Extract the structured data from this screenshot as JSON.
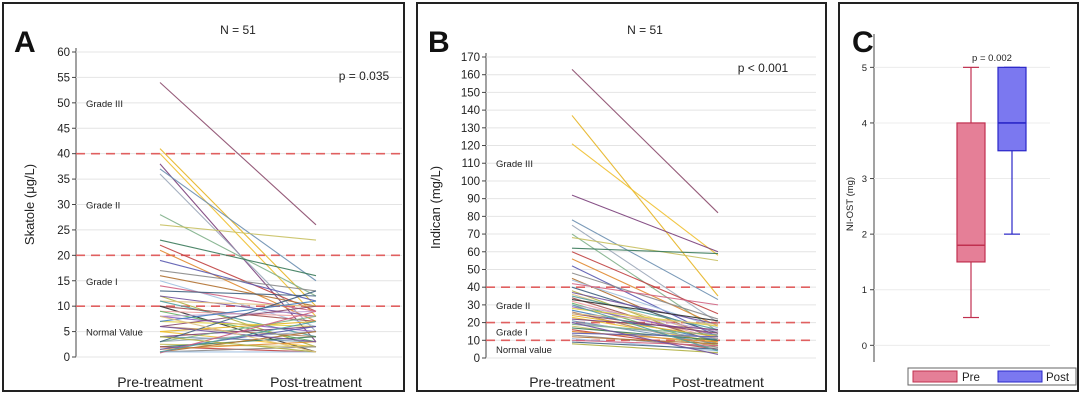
{
  "chart_data": [
    {
      "panel": "A",
      "type": "line",
      "title": "N = 51",
      "ylabel": "Skatole (μg/L)",
      "categories": [
        "Pre-treatment",
        "Post-treatment"
      ],
      "ylim": [
        0,
        60
      ],
      "yticks": [
        0,
        5,
        10,
        15,
        20,
        25,
        30,
        35,
        40,
        45,
        50,
        55,
        60
      ],
      "annotation": "p = 0.035",
      "thresholds": [
        10,
        20,
        40
      ],
      "threshold_color": "#e06060",
      "zones": [
        {
          "label": "Grade III",
          "y": 50
        },
        {
          "label": "Grade II",
          "y": 30
        },
        {
          "label": "Grade I",
          "y": 15
        },
        {
          "label": "Normal Value",
          "y": 5
        }
      ],
      "pairs": [
        [
          54,
          26
        ],
        [
          41,
          10
        ],
        [
          40,
          8
        ],
        [
          38,
          3
        ],
        [
          37,
          15
        ],
        [
          36,
          5
        ],
        [
          28,
          12
        ],
        [
          26,
          23
        ],
        [
          23,
          16
        ],
        [
          22,
          9
        ],
        [
          21,
          7
        ],
        [
          19,
          11
        ],
        [
          17,
          13
        ],
        [
          16,
          10
        ],
        [
          15,
          6
        ],
        [
          14,
          9
        ],
        [
          13,
          12
        ],
        [
          12,
          2
        ],
        [
          12,
          8
        ],
        [
          11,
          10
        ],
        [
          11,
          4
        ],
        [
          10,
          7
        ],
        [
          10,
          1
        ],
        [
          9,
          8
        ],
        [
          9,
          3
        ],
        [
          8,
          9
        ],
        [
          8,
          5
        ],
        [
          7,
          6
        ],
        [
          7,
          11
        ],
        [
          6,
          4
        ],
        [
          6,
          10
        ],
        [
          5,
          7
        ],
        [
          5,
          2
        ],
        [
          4,
          6
        ],
        [
          4,
          3
        ],
        [
          3,
          5
        ],
        [
          3,
          8
        ],
        [
          2.5,
          2
        ],
        [
          2,
          4
        ],
        [
          2,
          1
        ],
        [
          1.5,
          3
        ],
        [
          1.5,
          6
        ],
        [
          1,
          2
        ],
        [
          1,
          5
        ],
        [
          1,
          1
        ],
        [
          0.8,
          9
        ],
        [
          3,
          13
        ],
        [
          4,
          1
        ],
        [
          6,
          3
        ],
        [
          8,
          1
        ],
        [
          1,
          7
        ]
      ]
    },
    {
      "panel": "B",
      "type": "line",
      "title": "N = 51",
      "ylabel": "Indican (mg/L)",
      "categories": [
        "Pre-treatment",
        "Post-treatment"
      ],
      "ylim": [
        0,
        170
      ],
      "yticks": [
        0,
        10,
        20,
        30,
        40,
        50,
        60,
        70,
        80,
        90,
        100,
        110,
        120,
        130,
        140,
        150,
        160,
        170
      ],
      "annotation": "p < 0.001",
      "thresholds": [
        10,
        20,
        40
      ],
      "threshold_color": "#e06060",
      "zones": [
        {
          "label": "Grade III",
          "y": 110
        },
        {
          "label": "Grade II",
          "y": 30
        },
        {
          "label": "Grade I",
          "y": 15
        },
        {
          "label": "Normal value",
          "y": 5
        }
      ],
      "pairs": [
        [
          163,
          82
        ],
        [
          137,
          35
        ],
        [
          121,
          58
        ],
        [
          92,
          60
        ],
        [
          78,
          33
        ],
        [
          75,
          20
        ],
        [
          70,
          15
        ],
        [
          68,
          55
        ],
        [
          62,
          59
        ],
        [
          60,
          25
        ],
        [
          56,
          18
        ],
        [
          52,
          12
        ],
        [
          48,
          22
        ],
        [
          45,
          10
        ],
        [
          44,
          17
        ],
        [
          42,
          30
        ],
        [
          40,
          14
        ],
        [
          38,
          8
        ],
        [
          37,
          19
        ],
        [
          36,
          12
        ],
        [
          35,
          16
        ],
        [
          34,
          9
        ],
        [
          33,
          21
        ],
        [
          32,
          11
        ],
        [
          31,
          7
        ],
        [
          30,
          15
        ],
        [
          29,
          13
        ],
        [
          28,
          18
        ],
        [
          27,
          10
        ],
        [
          26,
          6
        ],
        [
          25,
          14
        ],
        [
          24,
          12
        ],
        [
          23,
          9
        ],
        [
          22,
          16
        ],
        [
          21,
          8
        ],
        [
          20,
          11
        ],
        [
          19,
          13
        ],
        [
          18,
          7
        ],
        [
          17,
          10
        ],
        [
          16,
          5
        ],
        [
          15,
          9
        ],
        [
          14,
          12
        ],
        [
          13,
          6
        ],
        [
          12,
          8
        ],
        [
          11,
          4
        ],
        [
          10,
          7
        ],
        [
          9,
          5
        ],
        [
          8,
          3
        ],
        [
          20,
          2
        ],
        [
          25,
          19
        ],
        [
          30,
          4
        ]
      ]
    },
    {
      "panel": "C",
      "type": "box",
      "annotation": "p = 0.002",
      "ylabel": "NI-OST (mg)",
      "ylim": [
        -0.3,
        5.6
      ],
      "yticks": [
        0,
        1,
        2,
        3,
        4,
        5
      ],
      "series": [
        {
          "name": "Pre",
          "min": 0.5,
          "q1": 1.5,
          "median": 1.8,
          "q3": 4,
          "max": 5,
          "fill": "#e57f97",
          "stroke": "#c0304f"
        },
        {
          "name": "Post",
          "min": 2,
          "q1": 3.5,
          "median": 4,
          "q3": 5,
          "max": 5,
          "fill": "#7b78f0",
          "stroke": "#2a27c8"
        }
      ],
      "legend": "bottom"
    }
  ]
}
